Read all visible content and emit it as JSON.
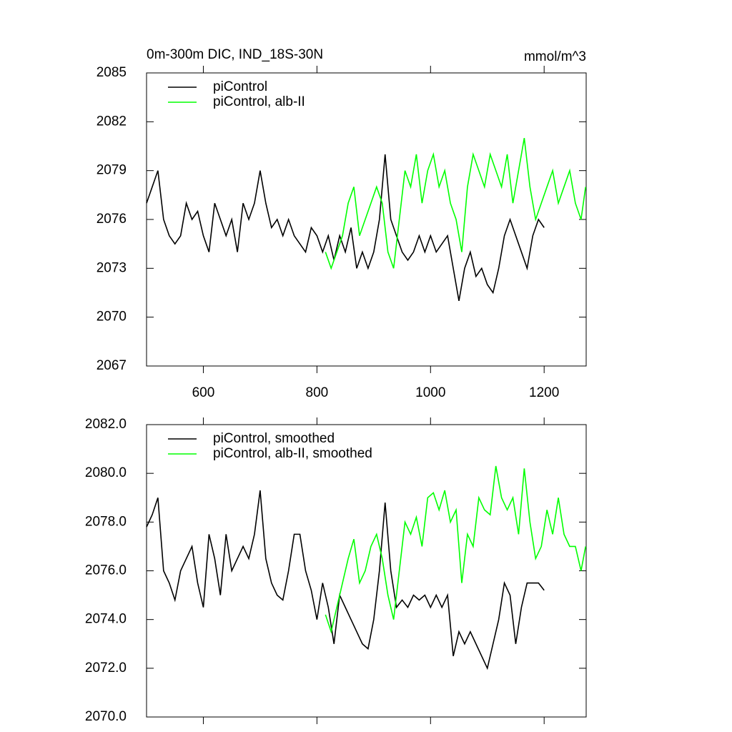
{
  "chart_data": [
    {
      "type": "line",
      "title": "0m-300m DIC, IND_18S-30N",
      "units": "mmol/m^3",
      "xlim": [
        500,
        1274
      ],
      "xticks": [
        600,
        800,
        1000,
        1200
      ],
      "xtick_labels": true,
      "ylim": [
        2067,
        2085
      ],
      "yticks": [
        2067,
        2070,
        2073,
        2076,
        2079,
        2082,
        2085
      ],
      "series": [
        {
          "name": "piControl",
          "color": "#000000",
          "x": [
            500,
            510,
            520,
            530,
            540,
            550,
            560,
            570,
            580,
            590,
            600,
            610,
            620,
            630,
            640,
            650,
            660,
            670,
            680,
            690,
            700,
            710,
            720,
            730,
            740,
            750,
            760,
            770,
            780,
            790,
            800,
            810,
            820,
            830,
            840,
            850,
            860,
            870,
            880,
            890,
            900,
            910,
            920,
            930,
            940,
            950,
            960,
            970,
            980,
            990,
            1000,
            1010,
            1020,
            1030,
            1040,
            1050,
            1060,
            1070,
            1080,
            1090,
            1100,
            1110,
            1120,
            1130,
            1140,
            1150,
            1160,
            1170,
            1180,
            1190,
            1200
          ],
          "values": [
            2077,
            2078,
            2079,
            2076,
            2075,
            2074.5,
            2075,
            2077,
            2076,
            2076.5,
            2075,
            2074,
            2077,
            2076,
            2075,
            2076,
            2074,
            2077,
            2076,
            2077,
            2079,
            2077,
            2075.5,
            2076,
            2075,
            2076,
            2075,
            2074.5,
            2074,
            2075.5,
            2075,
            2074,
            2075,
            2073.5,
            2075,
            2074,
            2075.5,
            2073,
            2074,
            2073,
            2074,
            2076,
            2080,
            2076,
            2075,
            2074,
            2073.5,
            2074,
            2075,
            2074,
            2075,
            2074,
            2074.5,
            2075,
            2073,
            2071,
            2073,
            2074,
            2072.5,
            2073,
            2072,
            2071.5,
            2073,
            2075,
            2076,
            2075,
            2074,
            2073,
            2075,
            2076,
            2075.5
          ]
        },
        {
          "name": "piControl, alb-II",
          "color": "#00ff00",
          "x": [
            815,
            825,
            835,
            845,
            855,
            865,
            875,
            885,
            895,
            905,
            915,
            925,
            935,
            945,
            955,
            965,
            975,
            985,
            995,
            1005,
            1015,
            1025,
            1035,
            1045,
            1055,
            1065,
            1075,
            1085,
            1095,
            1105,
            1115,
            1125,
            1135,
            1145,
            1155,
            1165,
            1175,
            1185,
            1195,
            1205,
            1215,
            1225,
            1235,
            1245,
            1255,
            1265,
            1273
          ],
          "values": [
            2074,
            2073,
            2074,
            2075,
            2077,
            2078,
            2075,
            2076,
            2077,
            2078,
            2077,
            2074,
            2073,
            2076,
            2079,
            2078,
            2080,
            2077,
            2079,
            2080,
            2078,
            2079,
            2077,
            2076,
            2074,
            2078,
            2080,
            2079,
            2078,
            2080,
            2079,
            2078,
            2080,
            2077,
            2079,
            2081,
            2078,
            2076,
            2077,
            2078,
            2079,
            2077,
            2078,
            2079,
            2077,
            2076,
            2078
          ]
        }
      ]
    },
    {
      "type": "line",
      "xlim": [
        500,
        1274
      ],
      "xticks": [
        600,
        800,
        1000,
        1200
      ],
      "xtick_labels": false,
      "ylim": [
        2070,
        2082
      ],
      "yticks": [
        {
          "value": 2070,
          "label": "2070.0"
        },
        {
          "value": 2072,
          "label": "2072.0"
        },
        {
          "value": 2074,
          "label": "2074.0"
        },
        {
          "value": 2076,
          "label": "2076.0"
        },
        {
          "value": 2078,
          "label": "2078.0"
        },
        {
          "value": 2080,
          "label": "2080.0"
        },
        {
          "value": 2082,
          "label": "2082.0"
        }
      ],
      "series": [
        {
          "name": "piControl, smoothed",
          "color": "#000000",
          "x": [
            500,
            510,
            520,
            530,
            540,
            550,
            560,
            570,
            580,
            590,
            600,
            610,
            620,
            630,
            640,
            650,
            660,
            670,
            680,
            690,
            700,
            710,
            720,
            730,
            740,
            750,
            760,
            770,
            780,
            790,
            800,
            810,
            820,
            830,
            840,
            850,
            860,
            870,
            880,
            890,
            900,
            910,
            920,
            930,
            940,
            950,
            960,
            970,
            980,
            990,
            1000,
            1010,
            1020,
            1030,
            1040,
            1050,
            1060,
            1070,
            1080,
            1090,
            1100,
            1110,
            1120,
            1130,
            1140,
            1150,
            1160,
            1170,
            1180,
            1190,
            1200
          ],
          "values": [
            2077.8,
            2078.3,
            2079,
            2076,
            2075.5,
            2074.8,
            2076,
            2076.5,
            2077,
            2075.5,
            2074.5,
            2077.5,
            2076.5,
            2075,
            2077.5,
            2076,
            2076.5,
            2077,
            2076.5,
            2077.5,
            2079.3,
            2076.5,
            2075.5,
            2075,
            2074.8,
            2076,
            2077.5,
            2077.5,
            2076,
            2075.2,
            2074,
            2075.5,
            2074.5,
            2073,
            2075,
            2074.5,
            2074,
            2073.5,
            2073,
            2072.8,
            2074,
            2076,
            2078.8,
            2076,
            2074.5,
            2074.8,
            2074.5,
            2075,
            2074.8,
            2075,
            2074.5,
            2075,
            2074.5,
            2075,
            2072.5,
            2073.5,
            2073,
            2073.5,
            2073,
            2072.5,
            2072,
            2073,
            2074,
            2075.5,
            2075,
            2073,
            2074.5,
            2075.5,
            2075.5,
            2075.5,
            2075.2
          ]
        },
        {
          "name": "piControl, alb-II, smoothed",
          "color": "#00ff00",
          "x": [
            815,
            825,
            835,
            845,
            855,
            865,
            875,
            885,
            895,
            905,
            915,
            925,
            935,
            945,
            955,
            965,
            975,
            985,
            995,
            1005,
            1015,
            1025,
            1035,
            1045,
            1055,
            1065,
            1075,
            1085,
            1095,
            1105,
            1115,
            1125,
            1135,
            1145,
            1155,
            1165,
            1175,
            1185,
            1195,
            1205,
            1215,
            1225,
            1235,
            1245,
            1255,
            1265,
            1273
          ],
          "values": [
            2074.2,
            2073.5,
            2074.5,
            2075.5,
            2076.5,
            2077.3,
            2075.5,
            2076,
            2077,
            2077.5,
            2076.5,
            2075,
            2074,
            2076,
            2078,
            2077.5,
            2078.2,
            2077,
            2079,
            2079.2,
            2078.5,
            2079.3,
            2078,
            2078.5,
            2075.5,
            2077.5,
            2077,
            2079,
            2078.5,
            2078.3,
            2080.3,
            2079,
            2078.5,
            2079,
            2077.5,
            2080.2,
            2078,
            2076.5,
            2077,
            2078.5,
            2077.5,
            2079,
            2077.5,
            2077,
            2077,
            2076,
            2077
          ]
        }
      ]
    }
  ]
}
